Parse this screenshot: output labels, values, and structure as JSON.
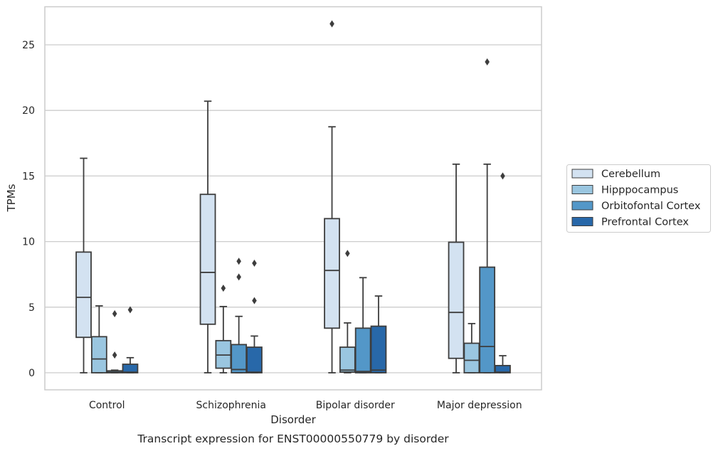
{
  "chart_data": {
    "type": "box",
    "caption": "Transcript expression for ENST00000550779 by disorder",
    "xlabel": "Disorder",
    "ylabel": "TPMs",
    "ylim": [
      -1.3,
      27.9
    ],
    "yticks": [
      0,
      5,
      10,
      15,
      20,
      25
    ],
    "grid": "horizontal",
    "legend_position": "right",
    "categories": [
      "Control",
      "Schizophrenia",
      "Bipolar disorder",
      "Major depression"
    ],
    "series": [
      {
        "name": "Cerebellum",
        "color": "#d3e2f1",
        "boxes": [
          {
            "whislo": 0,
            "q1": 2.7,
            "med": 5.75,
            "q3": 9.2,
            "whishi": 16.35,
            "fliers": []
          },
          {
            "whislo": 0,
            "q1": 3.7,
            "med": 7.65,
            "q3": 13.6,
            "whishi": 20.7,
            "fliers": []
          },
          {
            "whislo": 0,
            "q1": 3.4,
            "med": 7.8,
            "q3": 11.75,
            "whishi": 18.75,
            "fliers": [
              26.6
            ]
          },
          {
            "whislo": 0,
            "q1": 1.1,
            "med": 4.6,
            "q3": 9.95,
            "whishi": 15.9,
            "fliers": []
          }
        ]
      },
      {
        "name": "Hipppocampus",
        "color": "#9ac6e0",
        "boxes": [
          {
            "whislo": 0,
            "q1": 0,
            "med": 1.05,
            "q3": 2.75,
            "whishi": 5.1,
            "fliers": []
          },
          {
            "whislo": 0,
            "q1": 0.35,
            "med": 1.35,
            "q3": 2.45,
            "whishi": 5.05,
            "fliers": [
              6.45
            ]
          },
          {
            "whislo": 0,
            "q1": 0.05,
            "med": 0.2,
            "q3": 1.95,
            "whishi": 3.8,
            "fliers": [
              9.1
            ]
          },
          {
            "whislo": 0,
            "q1": 0,
            "med": 0.95,
            "q3": 2.25,
            "whishi": 3.75,
            "fliers": []
          }
        ]
      },
      {
        "name": "Orbitofontal Cortex",
        "color": "#5397c8",
        "boxes": [
          {
            "whislo": 0,
            "q1": 0,
            "med": 0.05,
            "q3": 0.15,
            "whishi": 0.2,
            "fliers": [
              1.35,
              4.5
            ]
          },
          {
            "whislo": 0,
            "q1": 0,
            "med": 0.25,
            "q3": 2.15,
            "whishi": 4.3,
            "fliers": [
              7.3,
              8.5
            ]
          },
          {
            "whislo": 0,
            "q1": 0,
            "med": 0.1,
            "q3": 3.4,
            "whishi": 7.25,
            "fliers": []
          },
          {
            "whislo": 0,
            "q1": 0,
            "med": 2.0,
            "q3": 8.05,
            "whishi": 15.9,
            "fliers": [
              23.7
            ]
          }
        ]
      },
      {
        "name": "Prefrontal Cortex",
        "color": "#2868a9",
        "boxes": [
          {
            "whislo": 0,
            "q1": 0,
            "med": 0.05,
            "q3": 0.65,
            "whishi": 1.15,
            "fliers": [
              4.8
            ]
          },
          {
            "whislo": 0,
            "q1": 0,
            "med": 0.05,
            "q3": 1.95,
            "whishi": 2.8,
            "fliers": [
              5.5,
              8.35
            ]
          },
          {
            "whislo": 0,
            "q1": 0,
            "med": 0.2,
            "q3": 3.55,
            "whishi": 5.85,
            "fliers": []
          },
          {
            "whislo": 0,
            "q1": 0,
            "med": 0.05,
            "q3": 0.55,
            "whishi": 1.3,
            "fliers": [
              15.0
            ]
          }
        ]
      }
    ]
  }
}
